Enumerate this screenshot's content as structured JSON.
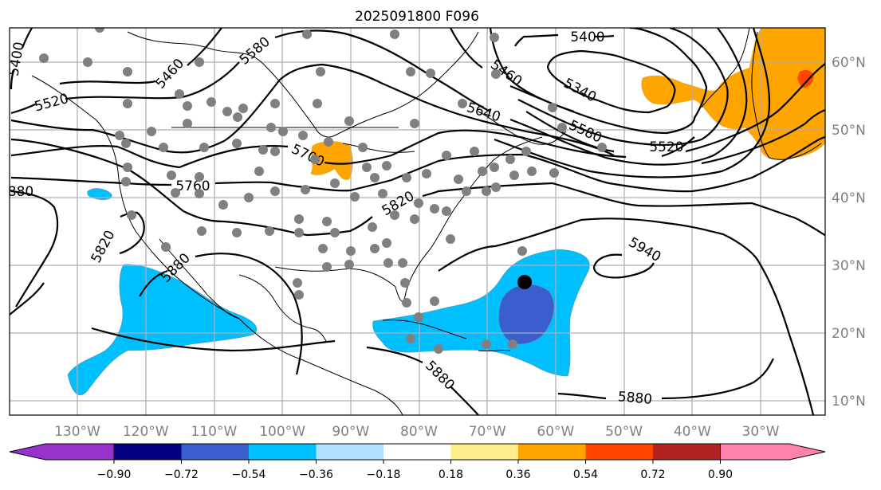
{
  "title": "2025091800 F096",
  "map": {
    "longitude_labels": [
      "130°W",
      "120°W",
      "110°W",
      "100°W",
      "90°W",
      "80°W",
      "70°W",
      "60°W",
      "50°W",
      "40°W",
      "30°W"
    ],
    "latitude_labels": [
      "60°N",
      "50°N",
      "40°N",
      "30°N",
      "20°N",
      "10°N"
    ],
    "contour_labels": {
      "c5400_w": "5400",
      "c5460_w": "5460",
      "c5520_w": "5520",
      "c5580": "5580",
      "c5700": "5700",
      "c5760": "5760",
      "c5820_e": "5820",
      "c5820_w": "5820",
      "c5880_w": "880",
      "c5880_mx": "5880",
      "c5400_e": "5400",
      "c5460_e": "5460",
      "c5340": "5340",
      "c5640": "5640",
      "c5580_e": "5580",
      "c5520_e": "5520",
      "c5940": "5940",
      "c5880_car": "5880",
      "c5880_s": "5880"
    },
    "shading_colors": {
      "light_blue": "#00bfff",
      "mid_blue": "#3a5fcd",
      "orange": "#ffa500",
      "red": "#ff4500"
    },
    "marker_color": "#808080"
  },
  "colorbar": {
    "colors": [
      "#9932cc",
      "#000080",
      "#3a5fcd",
      "#00bfff",
      "#b0e2ff",
      "#ffffff",
      "#ffec8b",
      "#ffa500",
      "#ff4500",
      "#b22222",
      "#ff82ab"
    ],
    "ticks": [
      "−0.90",
      "−0.72",
      "−0.54",
      "−0.36",
      "−0.18",
      "0.18",
      "0.36",
      "0.54",
      "0.72",
      "0.90"
    ]
  }
}
